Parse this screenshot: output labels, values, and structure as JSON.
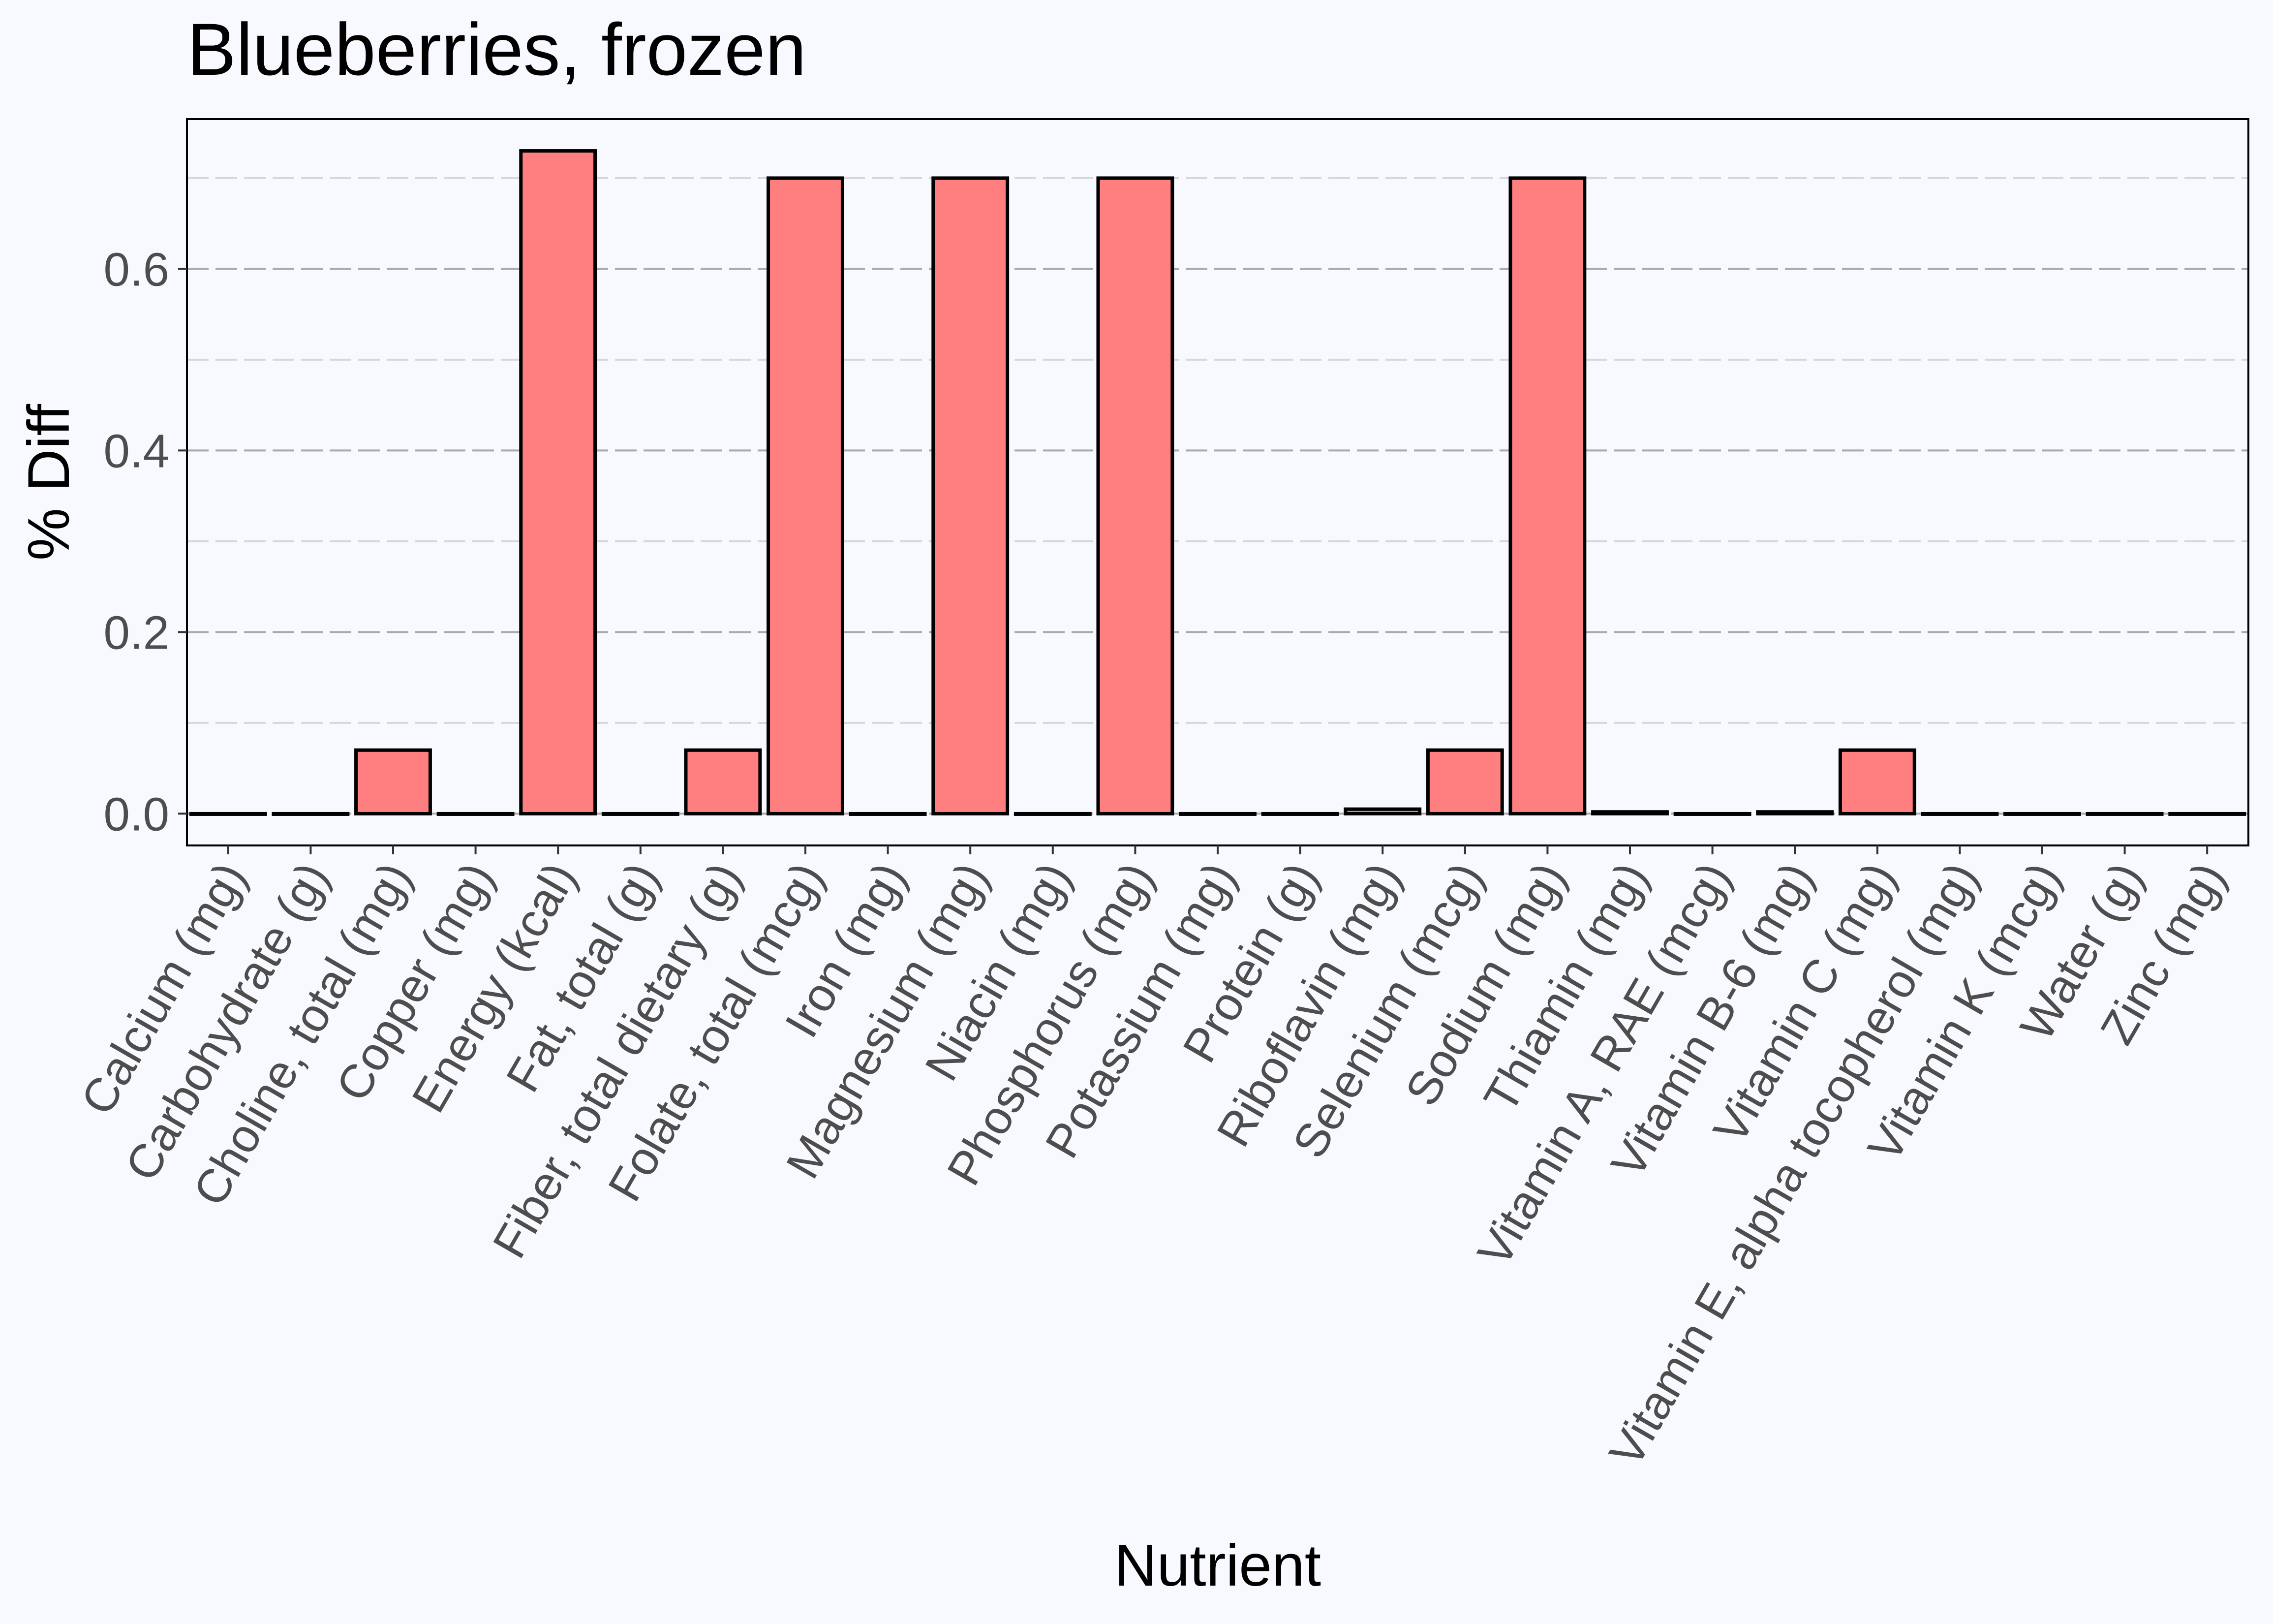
{
  "chart_data": {
    "type": "bar",
    "title": "Blueberries, frozen",
    "xlabel": "Nutrient",
    "ylabel": "% Diff",
    "ylim": [
      -0.035,
      0.765
    ],
    "yticks": [
      "0.0",
      "0.2",
      "0.4",
      "0.6"
    ],
    "grid": true,
    "legend": "none",
    "categories": [
      "Calcium (mg)",
      "Carbohydrate (g)",
      "Choline, total (mg)",
      "Copper (mg)",
      "Energy (kcal)",
      "Fat, total (g)",
      "Fiber, total dietary (g)",
      "Folate, total (mcg)",
      "Iron (mg)",
      "Magnesium (mg)",
      "Niacin (mg)",
      "Phosphorus (mg)",
      "Potassium (mg)",
      "Protein (g)",
      "Riboflavin (mg)",
      "Selenium (mcg)",
      "Sodium (mg)",
      "Thiamin (mg)",
      "Vitamin A, RAE (mcg)",
      "Vitamin B-6 (mg)",
      "Vitamin C (mg)",
      "Vitamin E, alpha tocopherol (mg)",
      "Vitamin K (mcg)",
      "Water (g)",
      "Zinc (mg)"
    ],
    "values": [
      0,
      0,
      0.07,
      0,
      0.73,
      0,
      0.07,
      0.7,
      0,
      0.7,
      0,
      0.7,
      0,
      0,
      0.005,
      0.07,
      0.7,
      0.002,
      0,
      0.002,
      0.07,
      0,
      0,
      0,
      0
    ],
    "colors": {
      "bar_fill": "#FF7F80",
      "bar_stroke": "#000000",
      "panel_background": "#F8F9FE",
      "major_grid": "#A8A8AD",
      "minor_grid": "#D6D6DB",
      "tick_text": "#4D4D4D"
    }
  }
}
